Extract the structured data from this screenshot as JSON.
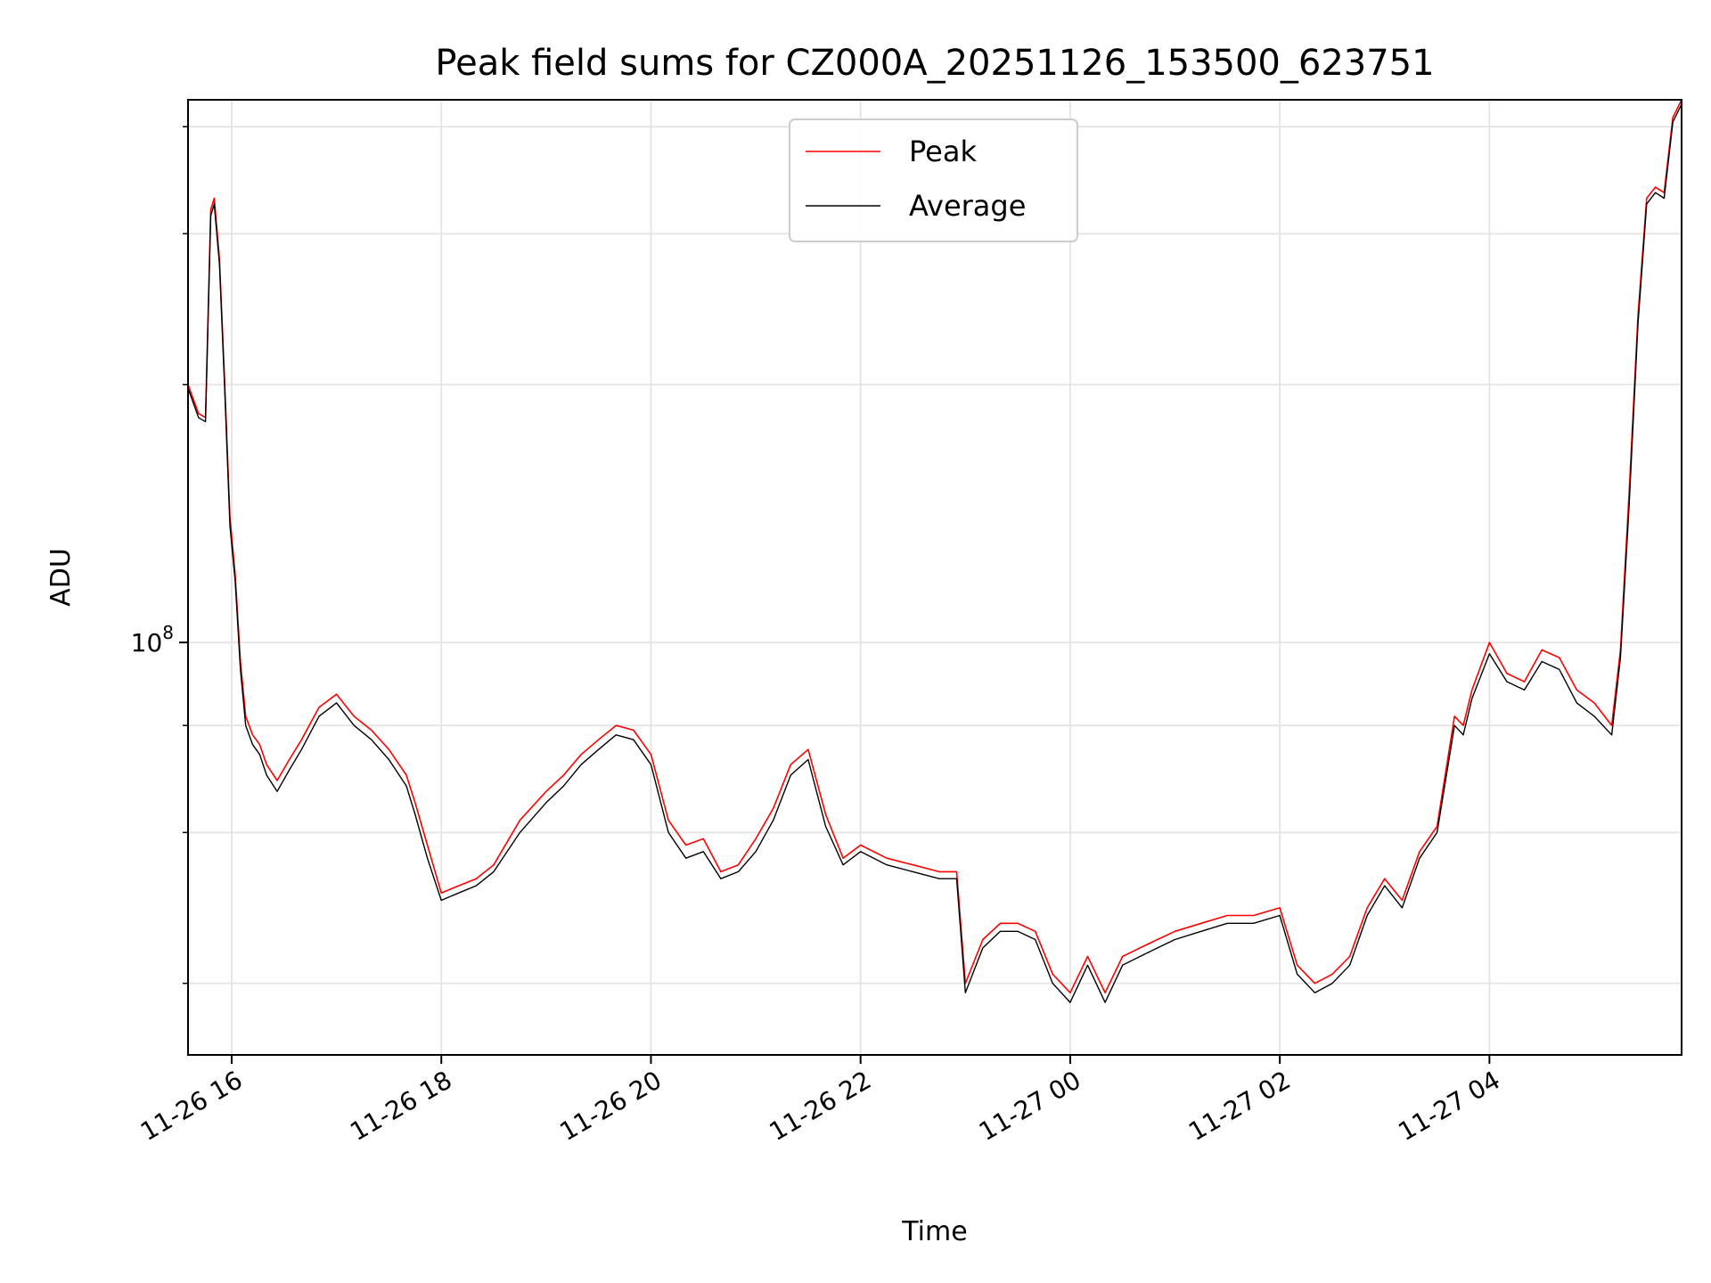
{
  "chart_data": {
    "type": "line",
    "title": "Peak field sums for CZ000A_20251126_153500_623751",
    "xlabel": "Time",
    "ylabel": "ADU",
    "yscale": "log",
    "y_tick_label": {
      "base": "10",
      "exponent": "8",
      "value": 100000000
    },
    "xlim": [
      "11-26 15:35",
      "11-27 05:50"
    ],
    "ylim": [
      33000000,
      430000000
    ],
    "grid": true,
    "legend": {
      "placement": "top-center",
      "entries": [
        "Peak",
        "Average"
      ]
    },
    "x_ticks": [
      "11-26 16",
      "11-26 18",
      "11-26 20",
      "11-26 22",
      "11-27 00",
      "11-27 02",
      "11-27 04"
    ],
    "x_tick_times": [
      "11-26 16:00",
      "11-26 18:00",
      "11-26 20:00",
      "11-26 22:00",
      "11-27 00:00",
      "11-27 02:00",
      "11-27 04:00"
    ],
    "x": [
      "11-26 15:35",
      "11-26 15:41",
      "11-26 15:45",
      "11-26 15:48",
      "11-26 15:50",
      "11-26 15:53",
      "11-26 15:56",
      "11-26 15:59",
      "11-26 16:02",
      "11-26 16:05",
      "11-26 16:08",
      "11-26 16:12",
      "11-26 16:16",
      "11-26 16:20",
      "11-26 16:26",
      "11-26 16:33",
      "11-26 16:40",
      "11-26 16:50",
      "11-26 17:00",
      "11-26 17:10",
      "11-26 17:20",
      "11-26 17:30",
      "11-26 17:40",
      "11-26 17:45",
      "11-26 17:52",
      "11-26 18:00",
      "11-26 18:10",
      "11-26 18:20",
      "11-26 18:30",
      "11-26 18:45",
      "11-26 19:00",
      "11-26 19:10",
      "11-26 19:20",
      "11-26 19:30",
      "11-26 19:40",
      "11-26 19:50",
      "11-26 20:00",
      "11-26 20:10",
      "11-26 20:20",
      "11-26 20:30",
      "11-26 20:40",
      "11-26 20:50",
      "11-26 21:00",
      "11-26 21:10",
      "11-26 21:20",
      "11-26 21:30",
      "11-26 21:40",
      "11-26 21:50",
      "11-26 22:00",
      "11-26 22:15",
      "11-26 22:30",
      "11-26 22:45",
      "11-26 22:55",
      "11-26 23:00",
      "11-26 23:10",
      "11-26 23:20",
      "11-26 23:30",
      "11-26 23:40",
      "11-26 23:50",
      "11-27 00:00",
      "11-27 00:10",
      "11-27 00:20",
      "11-27 00:30",
      "11-27 00:40",
      "11-27 00:50",
      "11-27 01:00",
      "11-27 01:15",
      "11-27 01:30",
      "11-27 01:45",
      "11-27 02:00",
      "11-27 02:10",
      "11-27 02:20",
      "11-27 02:30",
      "11-27 02:40",
      "11-27 02:50",
      "11-27 03:00",
      "11-27 03:10",
      "11-27 03:20",
      "11-27 03:30",
      "11-27 03:40",
      "11-27 03:45",
      "11-27 03:50",
      "11-27 04:00",
      "11-27 04:10",
      "11-27 04:20",
      "11-27 04:30",
      "11-27 04:40",
      "11-27 04:50",
      "11-27 05:00",
      "11-27 05:10",
      "11-27 05:15",
      "11-27 05:20",
      "11-27 05:25",
      "11-27 05:30",
      "11-27 05:35",
      "11-27 05:40",
      "11-27 05:45",
      "11-27 05:50"
    ],
    "series": [
      {
        "name": "Peak",
        "color": "#ff0000",
        "values": [
          200000000,
          185000000,
          183000000,
          320000000,
          330000000,
          280000000,
          200000000,
          140000000,
          120000000,
          95000000,
          82000000,
          78000000,
          76000000,
          72000000,
          69000000,
          73000000,
          77000000,
          84000000,
          87000000,
          82000000,
          79000000,
          75000000,
          70000000,
          65000000,
          58000000,
          51000000,
          52000000,
          53000000,
          55000000,
          62000000,
          67000000,
          70000000,
          74000000,
          77000000,
          80000000,
          79000000,
          74000000,
          62000000,
          58000000,
          59000000,
          54000000,
          55000000,
          59000000,
          64000000,
          72000000,
          75000000,
          63000000,
          56000000,
          58000000,
          56000000,
          55000000,
          54000000,
          54000000,
          40000000,
          45000000,
          47000000,
          47000000,
          46000000,
          41000000,
          39000000,
          43000000,
          39000000,
          43000000,
          44000000,
          45000000,
          46000000,
          47000000,
          48000000,
          48000000,
          49000000,
          42000000,
          40000000,
          41000000,
          43000000,
          49000000,
          53000000,
          50000000,
          57000000,
          61000000,
          82000000,
          80000000,
          88000000,
          100000000,
          92000000,
          90000000,
          98000000,
          96000000,
          88000000,
          85000000,
          80000000,
          98000000,
          150000000,
          240000000,
          330000000,
          340000000,
          335000000,
          410000000,
          430000000
        ]
      },
      {
        "name": "Average",
        "color": "#000000",
        "values": [
          198000000,
          183000000,
          181000000,
          315000000,
          325000000,
          276000000,
          197000000,
          137000000,
          118000000,
          93000000,
          80000000,
          76000000,
          74000000,
          70000000,
          67000000,
          71000000,
          75000000,
          82000000,
          85000000,
          80000000,
          77000000,
          73000000,
          68000000,
          63000000,
          56000000,
          50000000,
          51000000,
          52000000,
          54000000,
          60000000,
          65000000,
          68000000,
          72000000,
          75000000,
          78000000,
          77000000,
          72000000,
          60000000,
          56000000,
          57000000,
          53000000,
          54000000,
          57000000,
          62000000,
          70000000,
          73000000,
          61000000,
          55000000,
          57000000,
          55000000,
          54000000,
          53000000,
          53000000,
          39000000,
          44000000,
          46000000,
          46000000,
          45000000,
          40000000,
          38000000,
          42000000,
          38000000,
          42000000,
          43000000,
          44000000,
          45000000,
          46000000,
          47000000,
          47000000,
          48000000,
          41000000,
          39000000,
          40000000,
          42000000,
          48000000,
          52000000,
          49000000,
          56000000,
          60000000,
          80000000,
          78000000,
          86000000,
          97000000,
          90000000,
          88000000,
          95000000,
          93000000,
          85000000,
          82000000,
          78000000,
          96000000,
          145000000,
          235000000,
          325000000,
          335000000,
          330000000,
          405000000,
          425000000
        ]
      }
    ]
  }
}
